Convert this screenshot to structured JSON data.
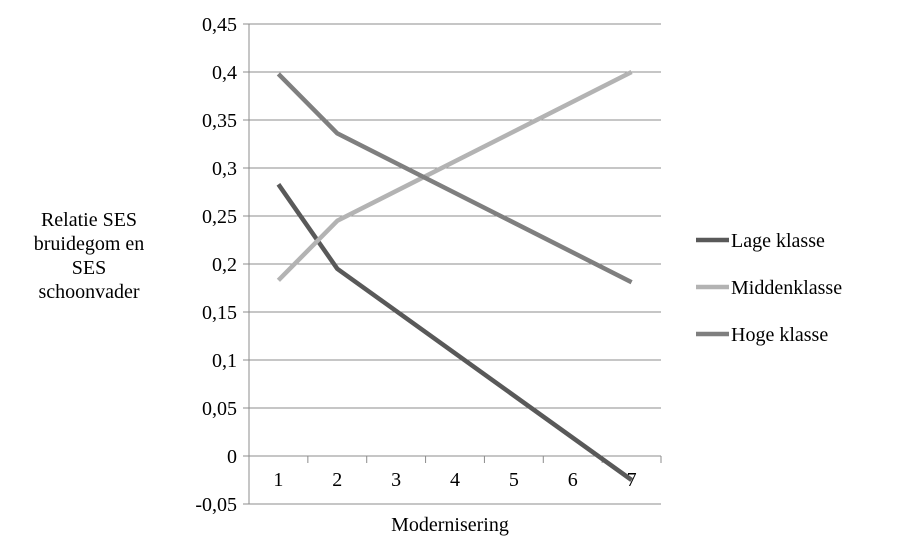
{
  "chart_data": {
    "type": "line",
    "title": "",
    "xlabel": "Modernisering",
    "ylabel_lines": [
      "Relatie SES",
      "bruidegom en",
      "SES",
      "schoonvader"
    ],
    "x": [
      1,
      2,
      3,
      4,
      5,
      6,
      7
    ],
    "x_tick_labels": [
      "1",
      "2",
      "3",
      "4",
      "5",
      "6",
      "7"
    ],
    "y_tick_labels": [
      "-0,05",
      "0",
      "0,05",
      "0,1",
      "0,15",
      "0,2",
      "0,25",
      "0,3",
      "0,35",
      "0,4",
      "0,45"
    ],
    "ylim": [
      -0.05,
      0.45
    ],
    "y_step": 0.05,
    "grid": true,
    "legend_position": "right",
    "series": [
      {
        "name": "Lage klasse",
        "color": "#595959",
        "points": [
          [
            1,
            0.283
          ],
          [
            2,
            0.195
          ],
          [
            7,
            -0.025
          ]
        ]
      },
      {
        "name": "Middenklasse",
        "color": "#b3b3b3",
        "points": [
          [
            1,
            0.183
          ],
          [
            2,
            0.245
          ],
          [
            7,
            0.4
          ]
        ]
      },
      {
        "name": "Hoge klasse",
        "color": "#7f7f7f",
        "points": [
          [
            1,
            0.398
          ],
          [
            2,
            0.336
          ],
          [
            7,
            0.181
          ]
        ]
      }
    ]
  }
}
